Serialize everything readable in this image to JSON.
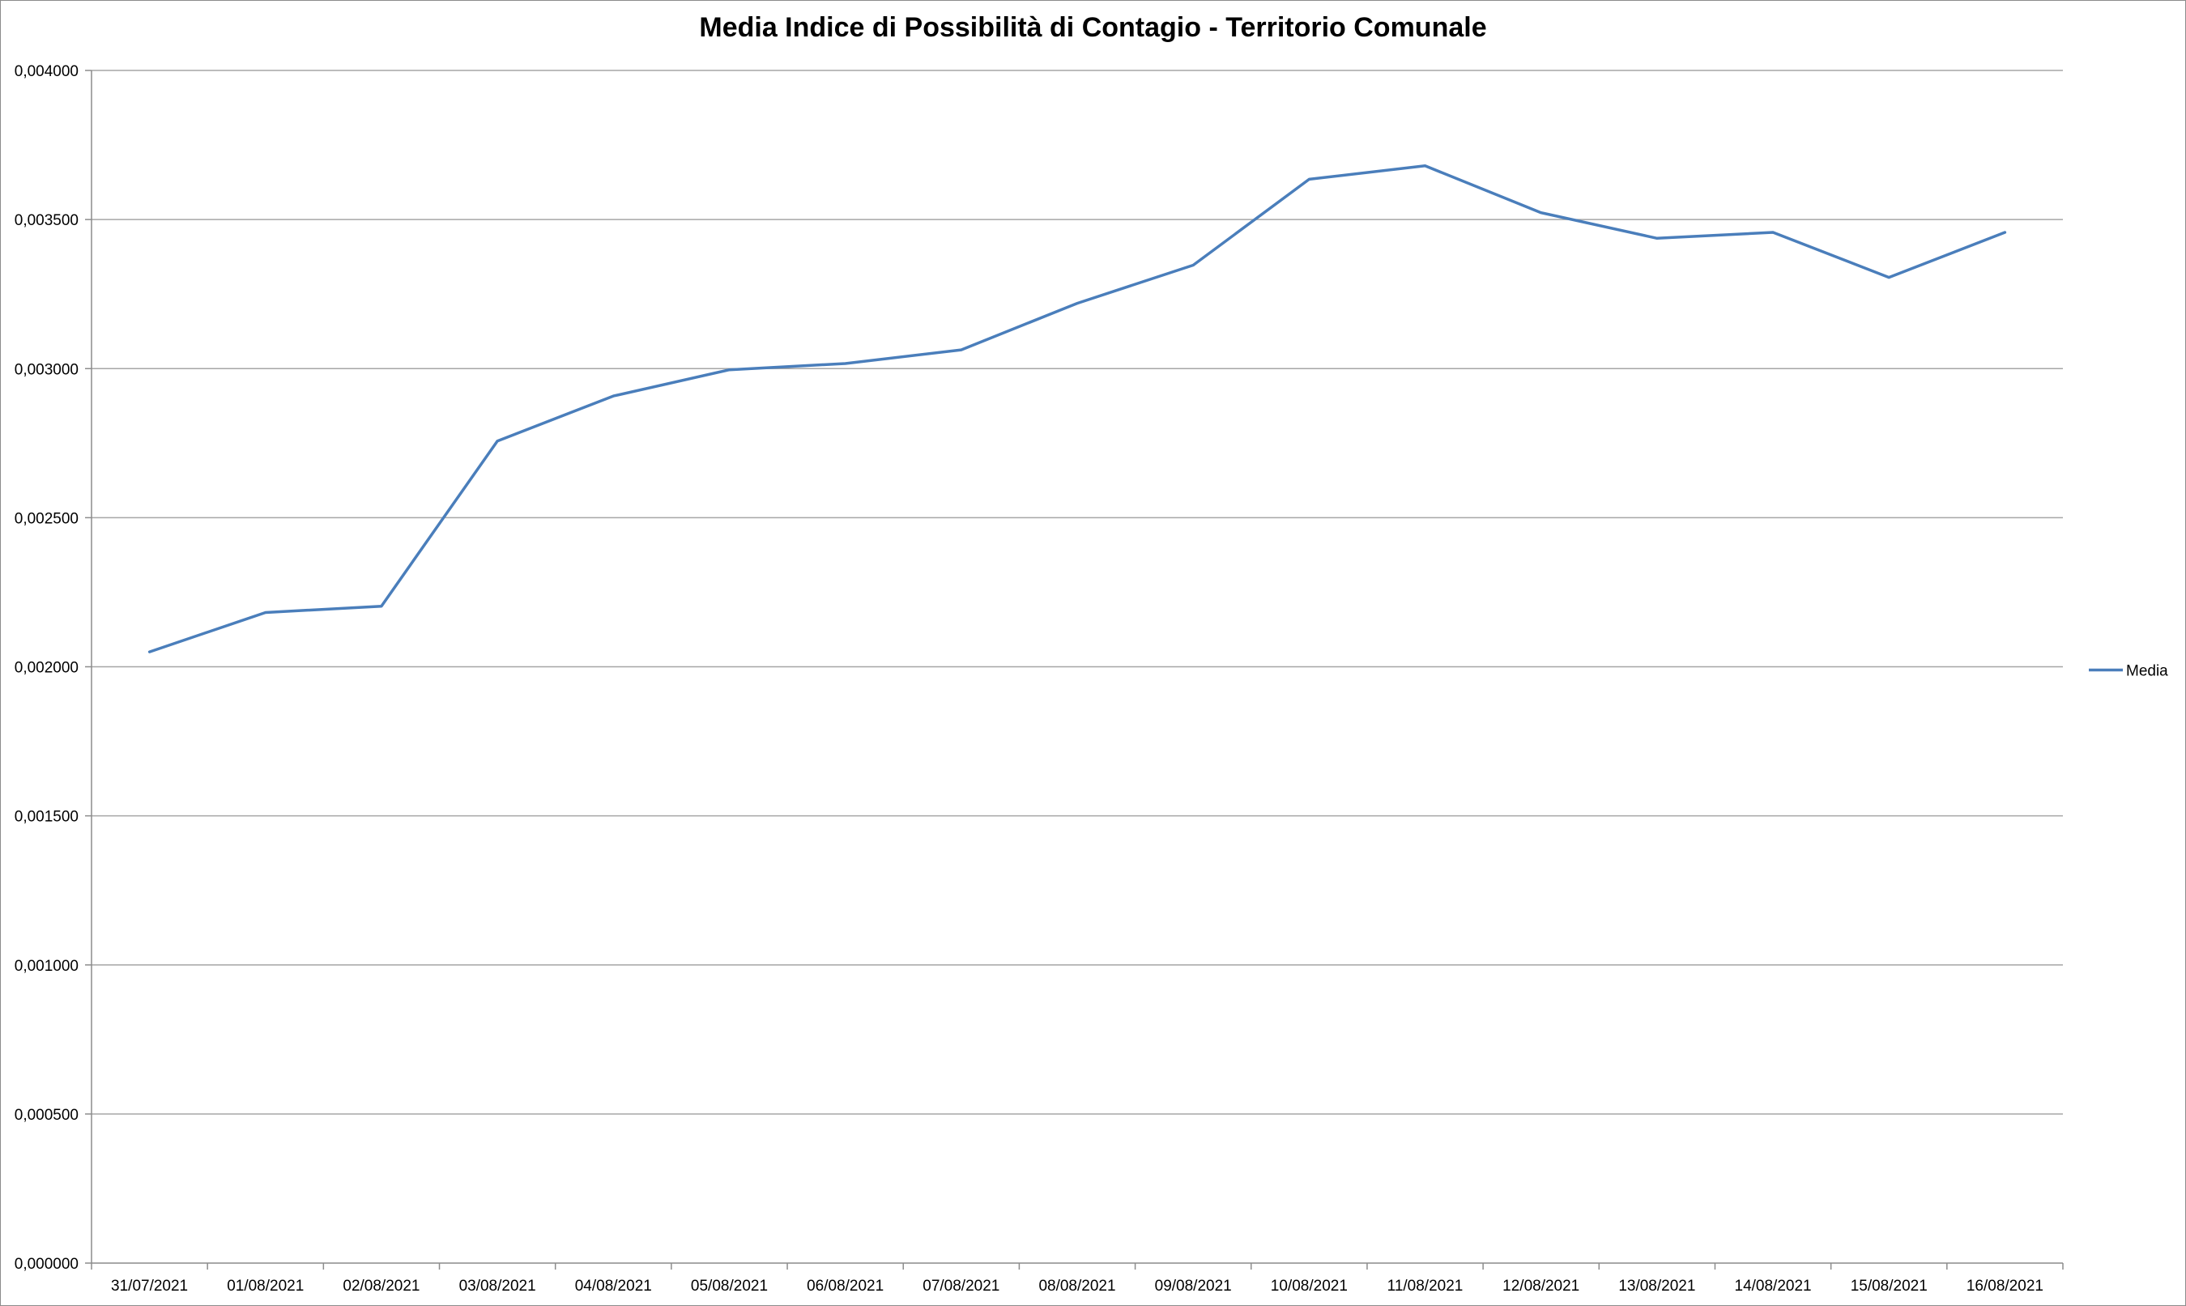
{
  "chart_data": {
    "type": "line",
    "title": "Media Indice di Possibilità di Contagio - Territorio Comunale",
    "xlabel": "",
    "ylabel": "",
    "categories": [
      "31/07/2021",
      "01/08/2021",
      "02/08/2021",
      "03/08/2021",
      "04/08/2021",
      "05/08/2021",
      "06/08/2021",
      "07/08/2021",
      "08/08/2021",
      "09/08/2021",
      "10/08/2021",
      "11/08/2021",
      "12/08/2021",
      "13/08/2021",
      "14/08/2021",
      "15/08/2021",
      "16/08/2021"
    ],
    "series": [
      {
        "name": "Media",
        "color": "#4a7ebb",
        "values": [
          0.00205,
          0.002182,
          0.002203,
          0.002757,
          0.002908,
          0.002996,
          0.003017,
          0.003063,
          0.003219,
          0.003347,
          0.003635,
          0.00368,
          0.003523,
          0.003437,
          0.003457,
          0.003306,
          0.003457
        ]
      }
    ],
    "ylim": [
      0,
      0.004
    ],
    "yticks": [
      "0,000000",
      "0,000500",
      "0,001000",
      "0,001500",
      "0,002000",
      "0,002500",
      "0,003000",
      "0,003500",
      "0,004000"
    ],
    "ytick_values": [
      0,
      0.0005,
      0.001,
      0.0015,
      0.002,
      0.0025,
      0.003,
      0.0035,
      0.004
    ],
    "grid": true,
    "legend_position": "right",
    "gridline_color": "#a6a6a6",
    "axis_color": "#8c8c8c"
  }
}
